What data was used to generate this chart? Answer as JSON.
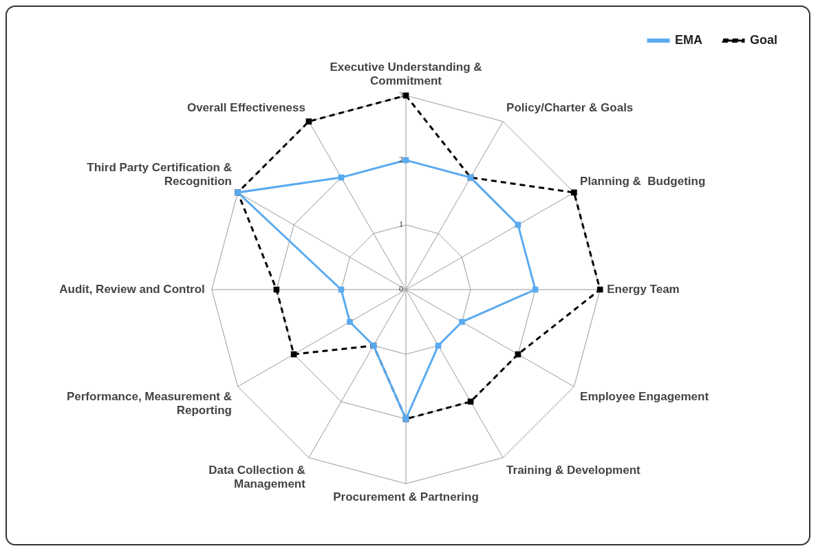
{
  "chart_data": {
    "type": "radar",
    "categories": [
      "Executive Understanding & Commitment",
      "Policy/Charter & Goals",
      "Planning &  Budgeting",
      "Energy Team",
      "Employee Engagement",
      "Training & Development",
      "Procurement & Partnering",
      "Data Collection & Management",
      "Performance, Measurement & Reporting",
      "Audit, Review and Control",
      "Third Party Certification & Recognition",
      "Overall Effectiveness"
    ],
    "series": [
      {
        "name": "EMA",
        "color": "#5aaaf0",
        "values": [
          2,
          2,
          2,
          2,
          1,
          1,
          2,
          1,
          1,
          1,
          3,
          2
        ],
        "line_style": "solid"
      },
      {
        "name": "Goal",
        "color": "#000000",
        "values": [
          3,
          2,
          3,
          3,
          2,
          2,
          2,
          1,
          2,
          2,
          3,
          3
        ],
        "line_style": "dashed"
      }
    ],
    "ylim": [
      0,
      3
    ],
    "yticks": [
      0,
      1,
      2,
      3
    ],
    "grid": true,
    "legend": "top right",
    "marker": "square"
  }
}
